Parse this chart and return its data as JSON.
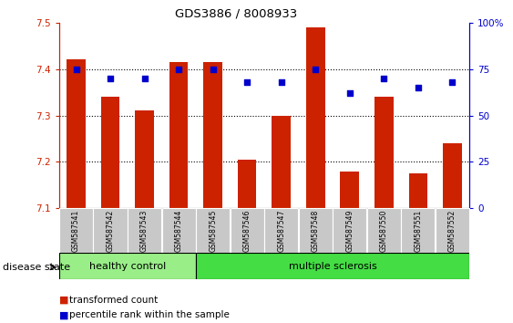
{
  "title": "GDS3886 / 8008933",
  "samples": [
    "GSM587541",
    "GSM587542",
    "GSM587543",
    "GSM587544",
    "GSM587545",
    "GSM587546",
    "GSM587547",
    "GSM587548",
    "GSM587549",
    "GSM587550",
    "GSM587551",
    "GSM587552"
  ],
  "bar_values": [
    7.42,
    7.34,
    7.31,
    7.415,
    7.415,
    7.205,
    7.3,
    7.49,
    7.18,
    7.34,
    7.175,
    7.24
  ],
  "percentile_values": [
    75,
    70,
    70,
    75,
    75,
    68,
    68,
    75,
    62,
    70,
    65,
    68
  ],
  "ylim_left": [
    7.1,
    7.5
  ],
  "ylim_right": [
    0,
    100
  ],
  "yticks_left": [
    7.1,
    7.2,
    7.3,
    7.4,
    7.5
  ],
  "yticks_right": [
    0,
    25,
    50,
    75,
    100
  ],
  "ytick_labels_right": [
    "0",
    "25",
    "50",
    "75",
    "100%"
  ],
  "bar_color": "#cc2200",
  "dot_color": "#0000cc",
  "healthy_control_count": 4,
  "healthy_label": "healthy control",
  "ms_label": "multiple sclerosis",
  "disease_state_label": "disease state",
  "legend_bar_label": "transformed count",
  "legend_dot_label": "percentile rank within the sample",
  "healthy_bg": "#99ee88",
  "ms_bg": "#44dd44",
  "tick_bg": "#c8c8c8",
  "bar_width": 0.55,
  "dot_size": 22,
  "grid_lines": [
    7.2,
    7.3,
    7.4
  ]
}
